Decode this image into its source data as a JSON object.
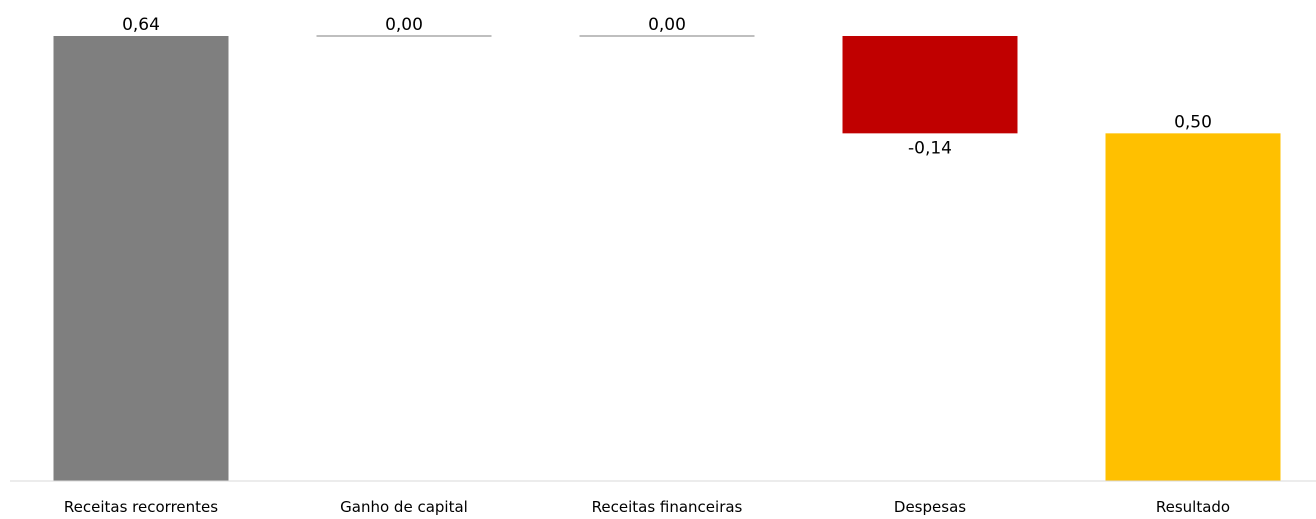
{
  "chart_data": {
    "type": "bar",
    "subtype": "waterfall",
    "categories": [
      "Receitas recorrentes",
      "Ganho de capital",
      "Receitas financeiras",
      "Despesas",
      "Resultado"
    ],
    "values": [
      0.64,
      0.0,
      0.0,
      -0.14,
      0.5
    ],
    "value_labels": [
      "0,64",
      "0,00",
      "0,00",
      "-0,14",
      "0,50"
    ],
    "bar_kinds": [
      "total",
      "delta",
      "delta",
      "delta",
      "total"
    ],
    "colors": [
      "#7f7f7f",
      "#7f7f7f",
      "#7f7f7f",
      "#c00000",
      "#ffc000"
    ],
    "ylim": [
      0,
      0.64
    ],
    "grid": false,
    "legend": "none"
  }
}
